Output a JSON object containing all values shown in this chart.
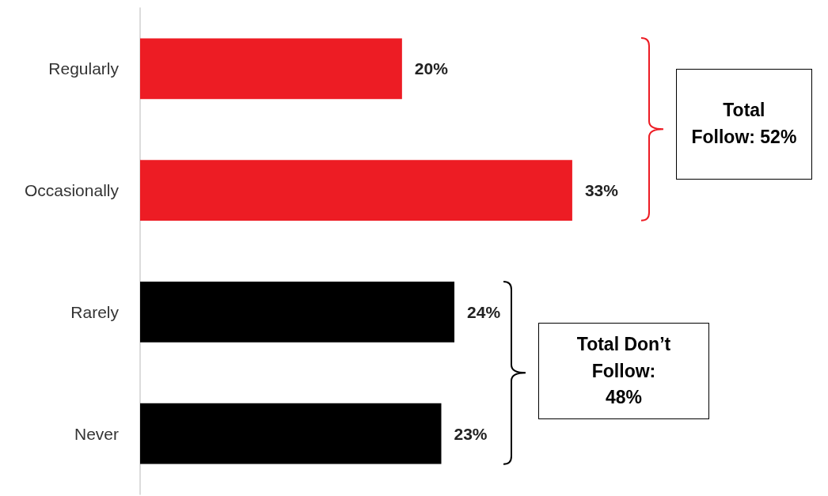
{
  "chart_data": {
    "type": "bar",
    "orientation": "horizontal",
    "categories": [
      "Regularly",
      "Occasionally",
      "Rarely",
      "Never"
    ],
    "values": [
      20,
      33,
      24,
      23
    ],
    "colors": [
      "#ed1c24",
      "#ed1c24",
      "#000000",
      "#000000"
    ],
    "value_labels": [
      "20%",
      "33%",
      "24%",
      "23%"
    ],
    "tick_labels": "y",
    "annotations": [
      "Total Follow: 52%",
      "Total Don’t Follow: 48%"
    ]
  }
}
